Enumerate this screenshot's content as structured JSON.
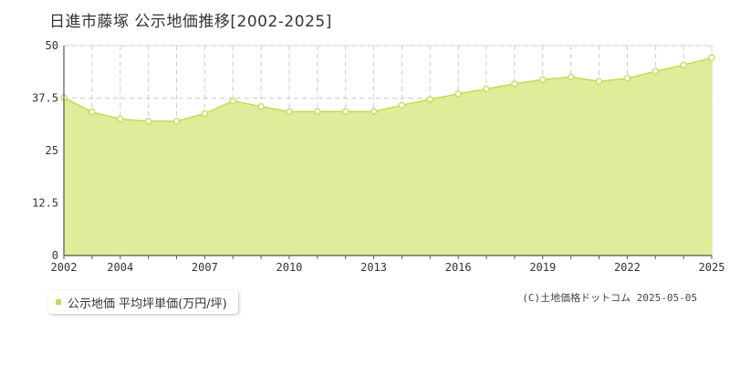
{
  "chart_data": {
    "type": "area",
    "title": "日進市藤塚 公示地価推移[2002-2025]",
    "x": [
      2002,
      2003,
      2004,
      2005,
      2006,
      2007,
      2008,
      2009,
      2010,
      2011,
      2012,
      2013,
      2014,
      2015,
      2016,
      2017,
      2018,
      2019,
      2020,
      2021,
      2022,
      2023,
      2024,
      2025
    ],
    "series": [
      {
        "name": "公示地価 平均坪単価(万円/坪)",
        "values": [
          37.6,
          34.2,
          32.5,
          32.0,
          32.0,
          33.8,
          36.8,
          35.5,
          34.3,
          34.3,
          34.3,
          34.3,
          35.8,
          37.2,
          38.5,
          39.7,
          40.9,
          41.9,
          42.5,
          41.5,
          42.2,
          43.9,
          45.4,
          47.1
        ]
      }
    ],
    "x_tick_labels": [
      "2002",
      "2004",
      "2007",
      "2010",
      "2013",
      "2016",
      "2019",
      "2022",
      "2025"
    ],
    "y_ticks": [
      "0",
      "12.5",
      "25",
      "37.5",
      "50"
    ],
    "ylim": [
      0,
      50
    ],
    "xlim": [
      2002,
      2025
    ],
    "grid": true,
    "xlabel": "",
    "ylabel": "",
    "colors": {
      "fill": "#dbec93",
      "line": "#c1dc55",
      "point_fill": "#ffffff",
      "grid": "#cccccc"
    }
  },
  "legend_label": "公示地価 平均坪単価(万円/坪)",
  "credit": "(C)土地価格ドットコム 2025-05-05"
}
